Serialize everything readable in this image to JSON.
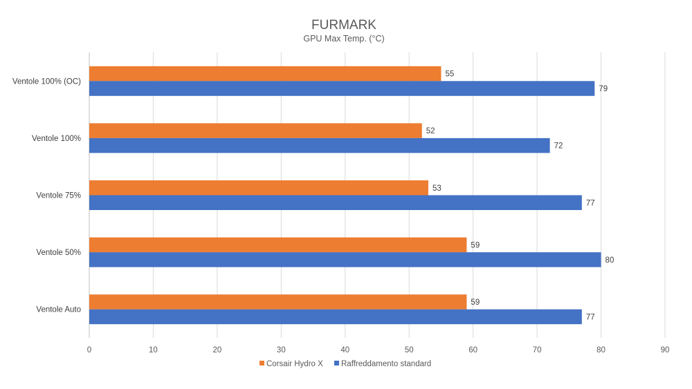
{
  "chart_data": {
    "type": "bar",
    "orientation": "horizontal",
    "title": "FURMARK",
    "subtitle": "GPU Max Temp. (°C)",
    "categories": [
      "Ventole 100% (OC)",
      "Ventole 100%",
      "Ventole 75%",
      "Ventole 50%",
      "Ventole Auto"
    ],
    "series": [
      {
        "name": "Corsair Hydro X",
        "color": "#ed7d31",
        "values": [
          55,
          52,
          53,
          59,
          59
        ]
      },
      {
        "name": "Raffreddamento standard",
        "color": "#4472c4",
        "values": [
          79,
          72,
          77,
          80,
          77
        ]
      }
    ],
    "xlim": [
      0,
      90
    ],
    "xticks": [
      0,
      10,
      20,
      30,
      40,
      50,
      60,
      70,
      80,
      90
    ],
    "grid": true,
    "legend_position": "bottom"
  }
}
